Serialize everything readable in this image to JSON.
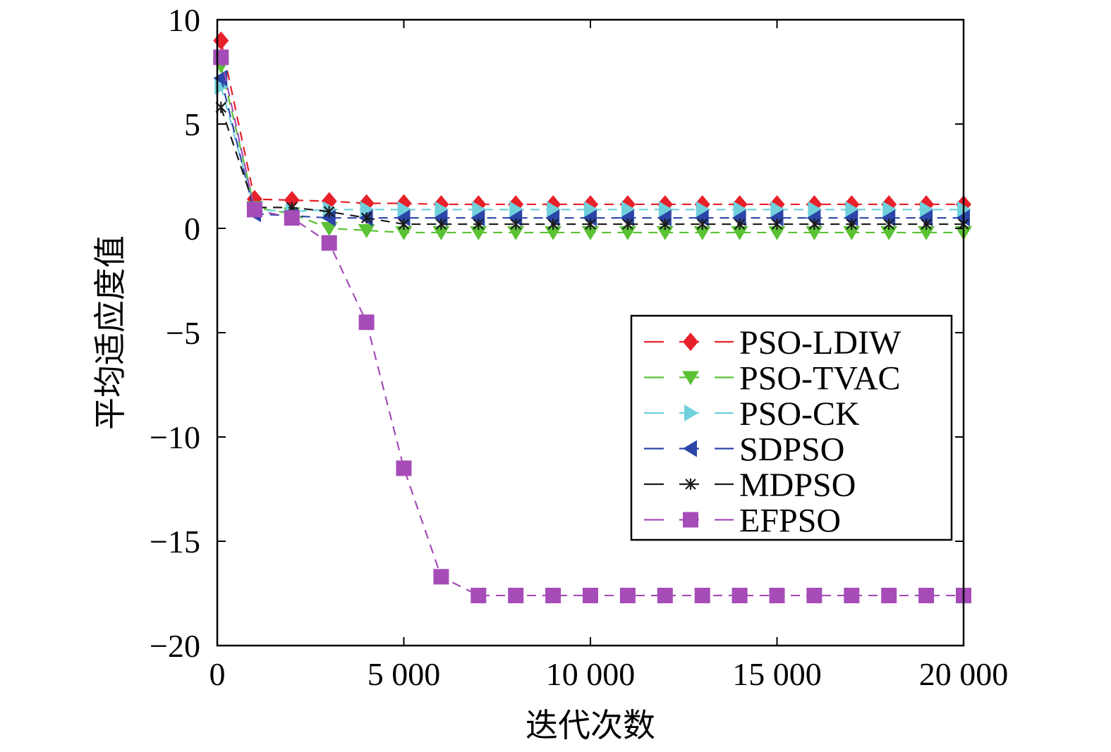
{
  "chart_data": {
    "type": "line",
    "title": "",
    "xlabel": "迭代次数",
    "ylabel": "平均适应度值",
    "xlim": [
      0,
      20000
    ],
    "ylim": [
      -20,
      10
    ],
    "x_ticks": [
      0,
      5000,
      10000,
      15000,
      20000
    ],
    "x_tick_labels": [
      "0",
      "5 000",
      "10 000",
      "15 000",
      "20 000"
    ],
    "y_ticks": [
      10,
      5,
      0,
      -5,
      -10,
      -15,
      -20
    ],
    "y_tick_labels": [
      "10",
      "5",
      "0",
      "−5",
      "−10",
      "−15",
      "−20"
    ],
    "grid": false,
    "legend_position": "center-right",
    "x": [
      100,
      1000,
      2000,
      3000,
      4000,
      5000,
      6000,
      7000,
      8000,
      9000,
      10000,
      11000,
      12000,
      13000,
      14000,
      15000,
      16000,
      17000,
      18000,
      19000,
      20000
    ],
    "series": [
      {
        "name": "PSO-LDIW",
        "color": "#e8202a",
        "marker": "diamond",
        "values": [
          9.0,
          1.4,
          1.35,
          1.3,
          1.2,
          1.2,
          1.15,
          1.15,
          1.15,
          1.15,
          1.15,
          1.15,
          1.15,
          1.15,
          1.15,
          1.15,
          1.15,
          1.15,
          1.15,
          1.15,
          1.15
        ]
      },
      {
        "name": "PSO-TVAC",
        "color": "#5ac234",
        "marker": "triangle-down",
        "values": [
          7.8,
          1.0,
          0.7,
          0.0,
          -0.1,
          -0.2,
          -0.2,
          -0.2,
          -0.2,
          -0.2,
          -0.2,
          -0.2,
          -0.2,
          -0.2,
          -0.2,
          -0.2,
          -0.2,
          -0.2,
          -0.2,
          -0.2,
          -0.2
        ]
      },
      {
        "name": "PSO-CK",
        "color": "#6fd0dc",
        "marker": "triangle-right",
        "values": [
          6.8,
          0.9,
          0.8,
          0.9,
          0.9,
          0.9,
          0.9,
          0.9,
          0.9,
          0.9,
          0.9,
          0.9,
          0.9,
          0.9,
          0.9,
          0.9,
          0.9,
          0.9,
          0.9,
          0.9,
          0.9
        ]
      },
      {
        "name": "SDPSO",
        "color": "#2b45a8",
        "marker": "triangle-left",
        "values": [
          7.2,
          0.7,
          0.6,
          0.5,
          0.5,
          0.5,
          0.5,
          0.5,
          0.5,
          0.5,
          0.5,
          0.5,
          0.5,
          0.5,
          0.5,
          0.5,
          0.5,
          0.5,
          0.5,
          0.5,
          0.5
        ]
      },
      {
        "name": "MDPSO",
        "color": "#1a1a1a",
        "marker": "star",
        "values": [
          5.8,
          1.0,
          1.0,
          0.8,
          0.5,
          0.2,
          0.2,
          0.2,
          0.2,
          0.2,
          0.2,
          0.2,
          0.2,
          0.2,
          0.2,
          0.2,
          0.2,
          0.2,
          0.2,
          0.2,
          0.2
        ]
      },
      {
        "name": "EFPSO",
        "color": "#a54cb8",
        "marker": "square",
        "values": [
          8.2,
          0.9,
          0.5,
          -0.7,
          -4.5,
          -11.5,
          -16.7,
          -17.6,
          -17.6,
          -17.6,
          -17.6,
          -17.6,
          -17.6,
          -17.6,
          -17.6,
          -17.6,
          -17.6,
          -17.6,
          -17.6,
          -17.6,
          -17.6
        ]
      }
    ]
  }
}
